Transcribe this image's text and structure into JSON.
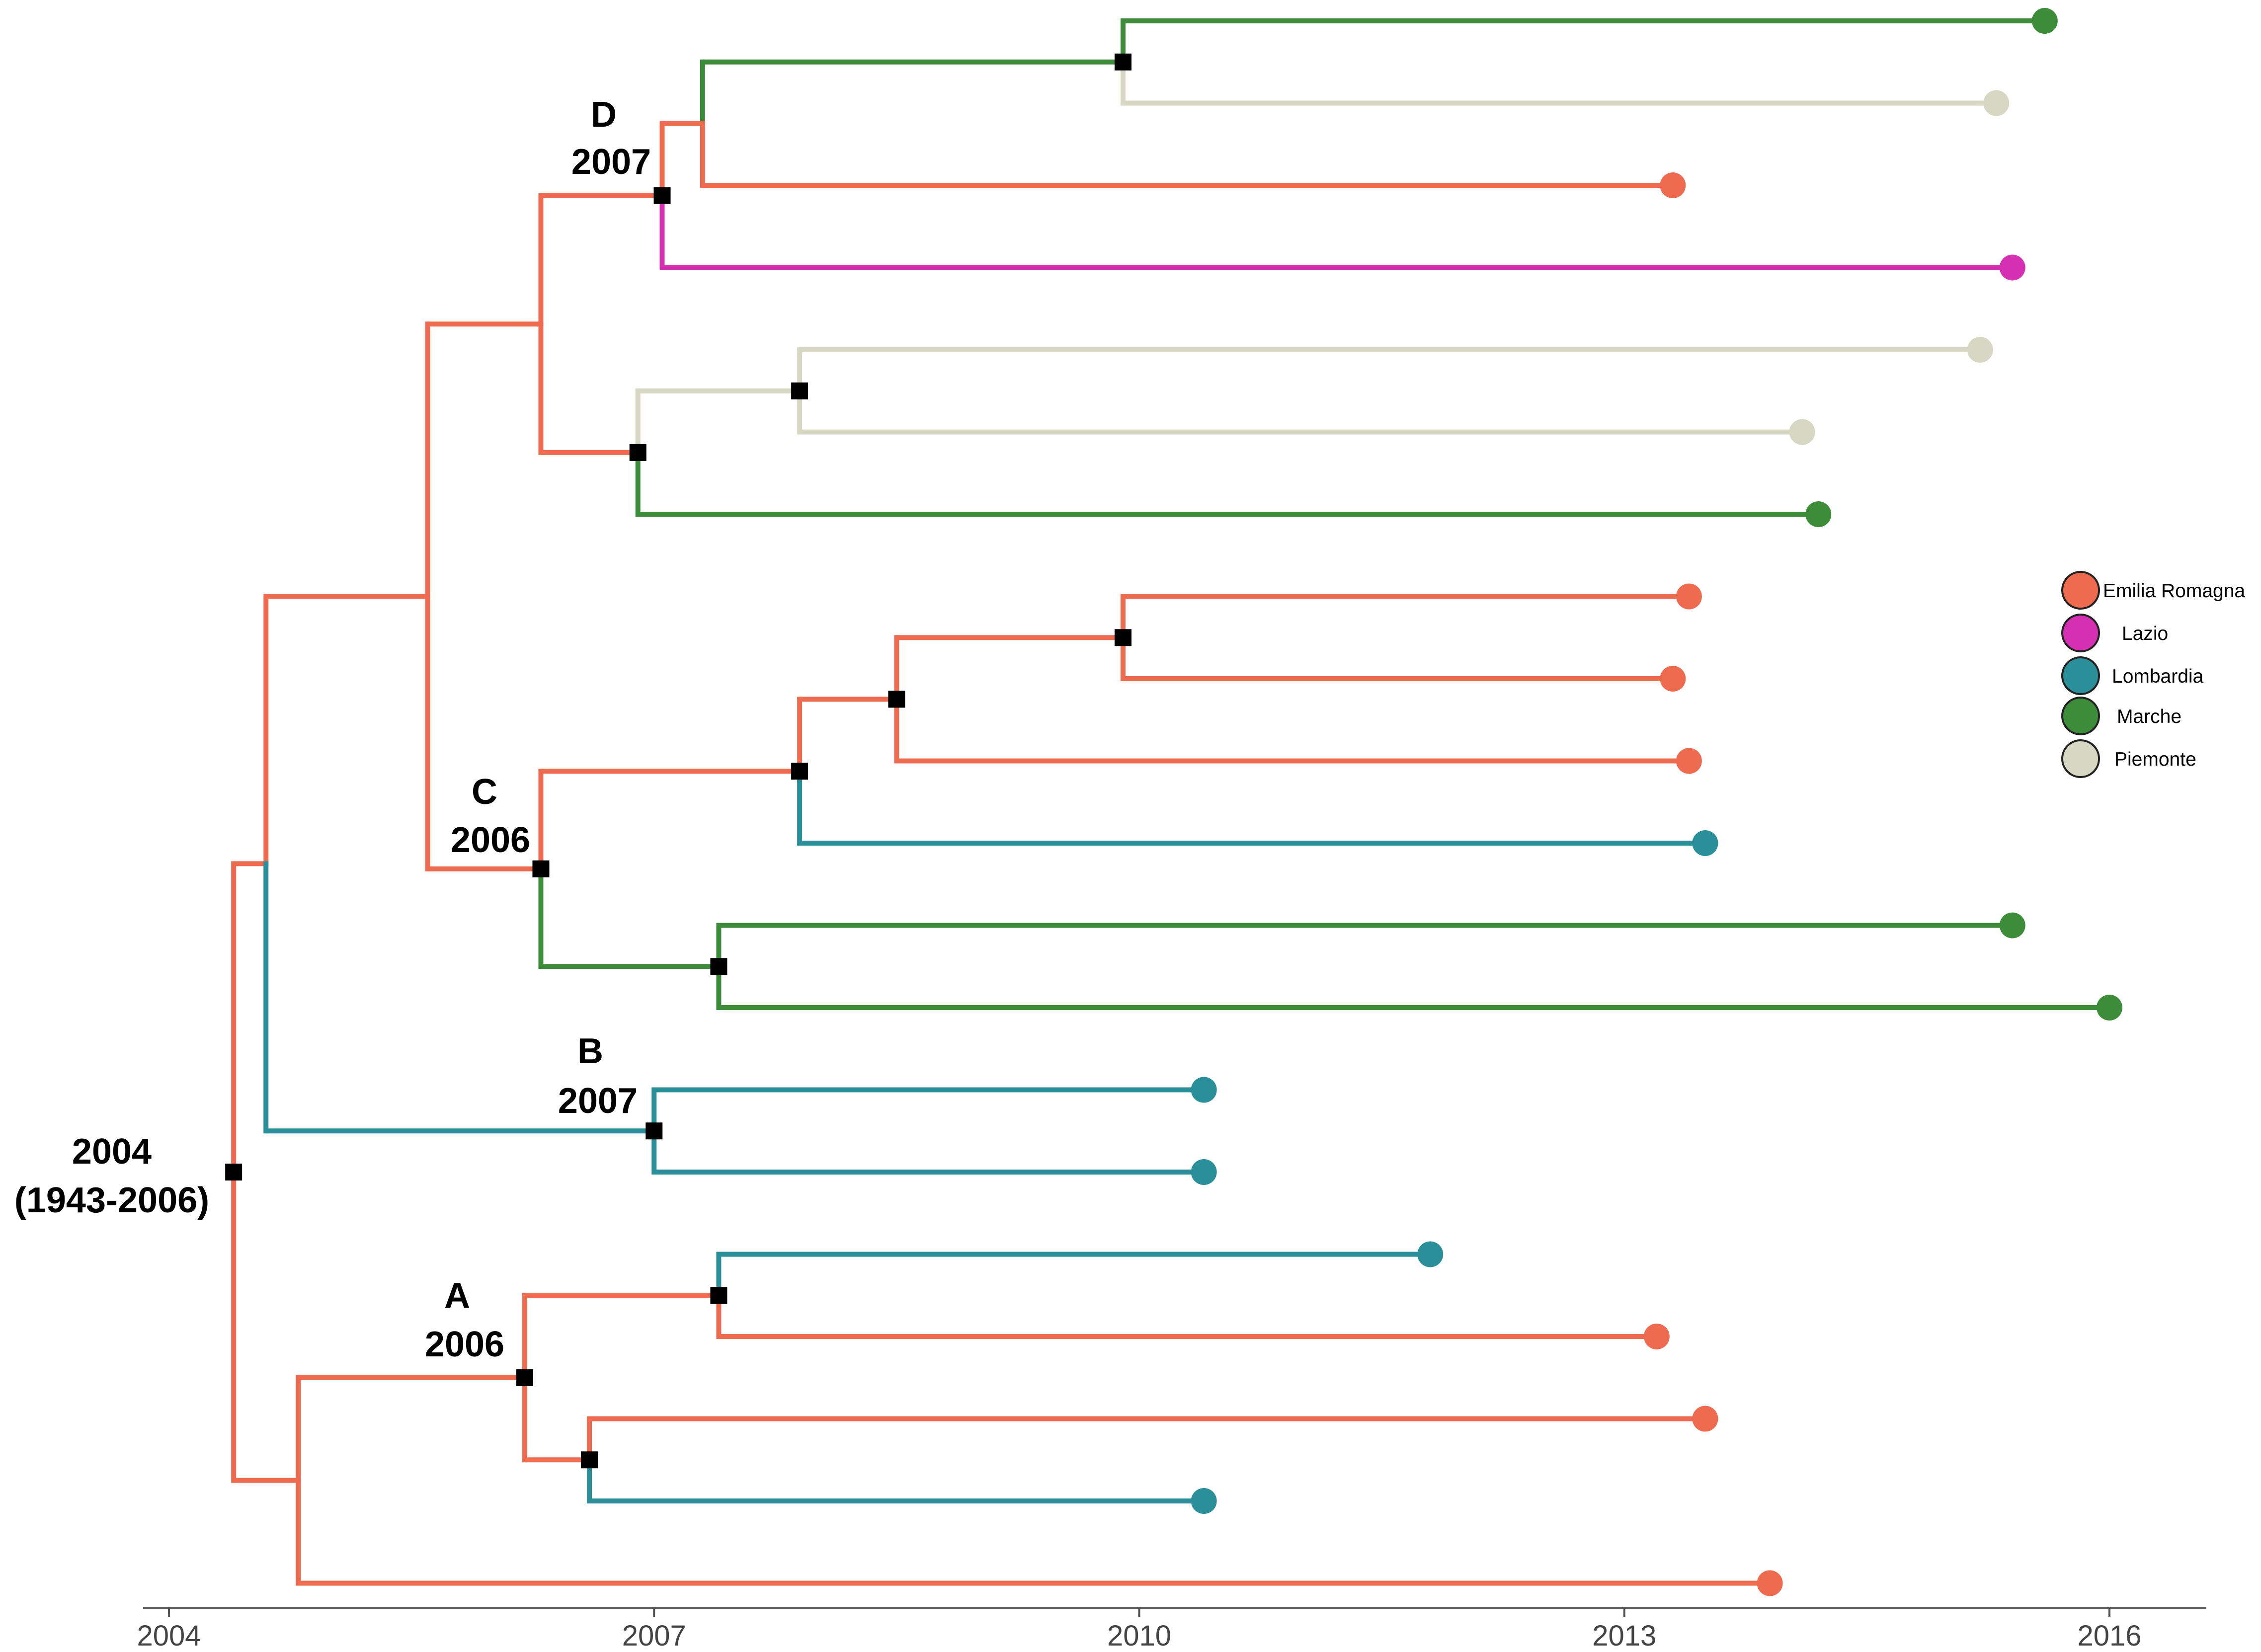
{
  "colors": {
    "Emilia Romagna": "#ef6b50",
    "Lazio": "#d530b1",
    "Lombardia": "#2a8f98",
    "Marche": "#3d8c3a",
    "Piemonte": "#d6d8c4"
  },
  "axis": {
    "range": [
      2004,
      2016.2
    ],
    "ticks": [
      {
        "value": 2004,
        "label": "2004"
      },
      {
        "value": 2007,
        "label": "2007"
      },
      {
        "value": 2010,
        "label": "2010"
      },
      {
        "value": 2013,
        "label": "2013"
      },
      {
        "value": 2016,
        "label": "2016"
      }
    ]
  },
  "legend": {
    "placement": "right",
    "entries": [
      {
        "name": "Emilia Romagna",
        "label": "Emilia Romagna"
      },
      {
        "name": "Lazio",
        "label": "Lazio"
      },
      {
        "name": "Lombardia",
        "label": "Lombardia"
      },
      {
        "name": "Marche",
        "label": "Marche"
      },
      {
        "name": "Piemonte",
        "label": "Piemonte"
      }
    ]
  },
  "clade_labels": {
    "root": {
      "line1": "2004",
      "line2": "(1943-2006)"
    },
    "A": {
      "line1": "A",
      "line2": "2006"
    },
    "B": {
      "line1": "B",
      "line2": "2007"
    },
    "C": {
      "line1": "C",
      "line2": "2006"
    },
    "D": {
      "line1": "D",
      "line2": "2007"
    }
  },
  "tree": {
    "id": "root",
    "time": 2004.4,
    "region": "Emilia Romagna",
    "marker": true,
    "children": [
      {
        "id": "n1",
        "time": 2004.6,
        "region": "Emilia Romagna",
        "children": [
          {
            "id": "n2",
            "time": 2005.6,
            "region": "Emilia Romagna",
            "children": [
              {
                "id": "n3",
                "time": 2006.3,
                "region": "Emilia Romagna",
                "children": [
                  {
                    "id": "D",
                    "time": 2007.05,
                    "region": "Emilia Romagna",
                    "marker": true,
                    "children": [
                      {
                        "id": "n5",
                        "time": 2007.3,
                        "region": "Emilia Romagna",
                        "children": [
                          {
                            "id": "n6",
                            "time": 2009.9,
                            "region": "Marche",
                            "marker": true,
                            "children": [
                              {
                                "id": "L1",
                                "time": 2015.6,
                                "region": "Marche"
                              },
                              {
                                "id": "L2",
                                "time": 2015.3,
                                "region": "Piemonte"
                              }
                            ]
                          },
                          {
                            "id": "L3",
                            "time": 2013.3,
                            "region": "Emilia Romagna"
                          }
                        ]
                      },
                      {
                        "id": "L4",
                        "time": 2015.4,
                        "region": "Lazio"
                      }
                    ]
                  },
                  {
                    "id": "n7",
                    "time": 2006.9,
                    "region": "Emilia Romagna",
                    "marker": true,
                    "children": [
                      {
                        "id": "n8",
                        "time": 2007.9,
                        "region": "Piemonte",
                        "marker": true,
                        "children": [
                          {
                            "id": "L5",
                            "time": 2015.2,
                            "region": "Piemonte"
                          },
                          {
                            "id": "L6",
                            "time": 2014.1,
                            "region": "Piemonte"
                          }
                        ]
                      },
                      {
                        "id": "L7",
                        "time": 2014.2,
                        "region": "Marche"
                      }
                    ]
                  }
                ]
              },
              {
                "id": "C",
                "time": 2006.3,
                "region": "Emilia Romagna",
                "marker": true,
                "children": [
                  {
                    "id": "n10",
                    "time": 2007.9,
                    "region": "Emilia Romagna",
                    "marker": true,
                    "children": [
                      {
                        "id": "n11",
                        "time": 2008.5,
                        "region": "Emilia Romagna",
                        "marker": true,
                        "children": [
                          {
                            "id": "n12",
                            "time": 2009.9,
                            "region": "Emilia Romagna",
                            "marker": true,
                            "children": [
                              {
                                "id": "L8",
                                "time": 2013.4,
                                "region": "Emilia Romagna"
                              },
                              {
                                "id": "L9",
                                "time": 2013.3,
                                "region": "Emilia Romagna"
                              }
                            ]
                          },
                          {
                            "id": "L10",
                            "time": 2013.4,
                            "region": "Emilia Romagna"
                          }
                        ]
                      },
                      {
                        "id": "L11",
                        "time": 2013.5,
                        "region": "Lombardia"
                      }
                    ]
                  },
                  {
                    "id": "n13",
                    "time": 2007.4,
                    "region": "Marche",
                    "marker": true,
                    "children": [
                      {
                        "id": "L12",
                        "time": 2015.4,
                        "region": "Marche"
                      },
                      {
                        "id": "L13",
                        "time": 2016.0,
                        "region": "Marche"
                      }
                    ]
                  }
                ]
              }
            ]
          },
          {
            "id": "B",
            "time": 2007.0,
            "region": "Lombardia",
            "marker": true,
            "children": [
              {
                "id": "L14",
                "time": 2010.4,
                "region": "Lombardia"
              },
              {
                "id": "L15",
                "time": 2010.4,
                "region": "Lombardia"
              }
            ]
          }
        ]
      },
      {
        "id": "n15",
        "time": 2004.8,
        "region": "Emilia Romagna",
        "children": [
          {
            "id": "A",
            "time": 2006.2,
            "region": "Emilia Romagna",
            "marker": true,
            "children": [
              {
                "id": "n17",
                "time": 2007.4,
                "region": "Emilia Romagna",
                "marker": true,
                "children": [
                  {
                    "id": "L16",
                    "time": 2011.8,
                    "region": "Lombardia"
                  },
                  {
                    "id": "L17",
                    "time": 2013.2,
                    "region": "Emilia Romagna"
                  }
                ]
              },
              {
                "id": "n18",
                "time": 2006.6,
                "region": "Emilia Romagna",
                "marker": true,
                "children": [
                  {
                    "id": "L18",
                    "time": 2013.5,
                    "region": "Emilia Romagna"
                  },
                  {
                    "id": "L19",
                    "time": 2010.4,
                    "region": "Lombardia"
                  }
                ]
              }
            ]
          },
          {
            "id": "L20",
            "time": 2013.9,
            "region": "Emilia Romagna"
          }
        ]
      }
    ]
  }
}
